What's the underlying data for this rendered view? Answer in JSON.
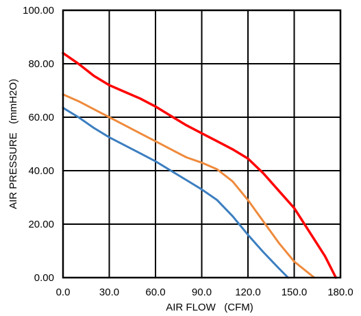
{
  "chart_data": {
    "type": "line",
    "title": "",
    "xlabel": "AIR FLOW   (CFM)",
    "ylabel": "AIR PRESSURE   (mmH2O)",
    "xlim": [
      0,
      180
    ],
    "ylim": [
      0,
      100
    ],
    "xticks": [
      0,
      30,
      60,
      90,
      120,
      150,
      180
    ],
    "yticks": [
      0,
      20,
      40,
      60,
      80,
      100
    ],
    "xtick_labels": [
      "0.0",
      "30.0",
      "60.0",
      "90.0",
      "120.0",
      "150.0",
      "180.0"
    ],
    "ytick_labels": [
      "0.00",
      "20.00",
      "40.00",
      "60.00",
      "80.00",
      "100.00"
    ],
    "grid": true,
    "legend": "none",
    "series": [
      {
        "color": "#ff0000",
        "points": [
          [
            0,
            84
          ],
          [
            10,
            80
          ],
          [
            20,
            75.5
          ],
          [
            30,
            72
          ],
          [
            40,
            69.5
          ],
          [
            50,
            67
          ],
          [
            60,
            64
          ],
          [
            70,
            60.5
          ],
          [
            80,
            57
          ],
          [
            90,
            54
          ],
          [
            100,
            51
          ],
          [
            110,
            48
          ],
          [
            120,
            44.5
          ],
          [
            130,
            39
          ],
          [
            140,
            32.5
          ],
          [
            150,
            26
          ],
          [
            160,
            17
          ],
          [
            170,
            8
          ],
          [
            177,
            0
          ]
        ]
      },
      {
        "color": "#ef8a3c",
        "points": [
          [
            0,
            68.5
          ],
          [
            10,
            66
          ],
          [
            20,
            63
          ],
          [
            30,
            60
          ],
          [
            40,
            57
          ],
          [
            50,
            54
          ],
          [
            60,
            51
          ],
          [
            70,
            48
          ],
          [
            80,
            45
          ],
          [
            90,
            43
          ],
          [
            100,
            40.5
          ],
          [
            110,
            36
          ],
          [
            120,
            29
          ],
          [
            130,
            21
          ],
          [
            140,
            13
          ],
          [
            150,
            6
          ],
          [
            163,
            0
          ]
        ]
      },
      {
        "color": "#3b7ec0",
        "points": [
          [
            0,
            63.5
          ],
          [
            10,
            60
          ],
          [
            20,
            56
          ],
          [
            30,
            52.5
          ],
          [
            40,
            49.5
          ],
          [
            50,
            46.5
          ],
          [
            60,
            43.5
          ],
          [
            70,
            40
          ],
          [
            80,
            36.5
          ],
          [
            90,
            33
          ],
          [
            100,
            29
          ],
          [
            110,
            23
          ],
          [
            120,
            16
          ],
          [
            130,
            9.5
          ],
          [
            140,
            3.5
          ],
          [
            146,
            0
          ]
        ]
      }
    ]
  }
}
